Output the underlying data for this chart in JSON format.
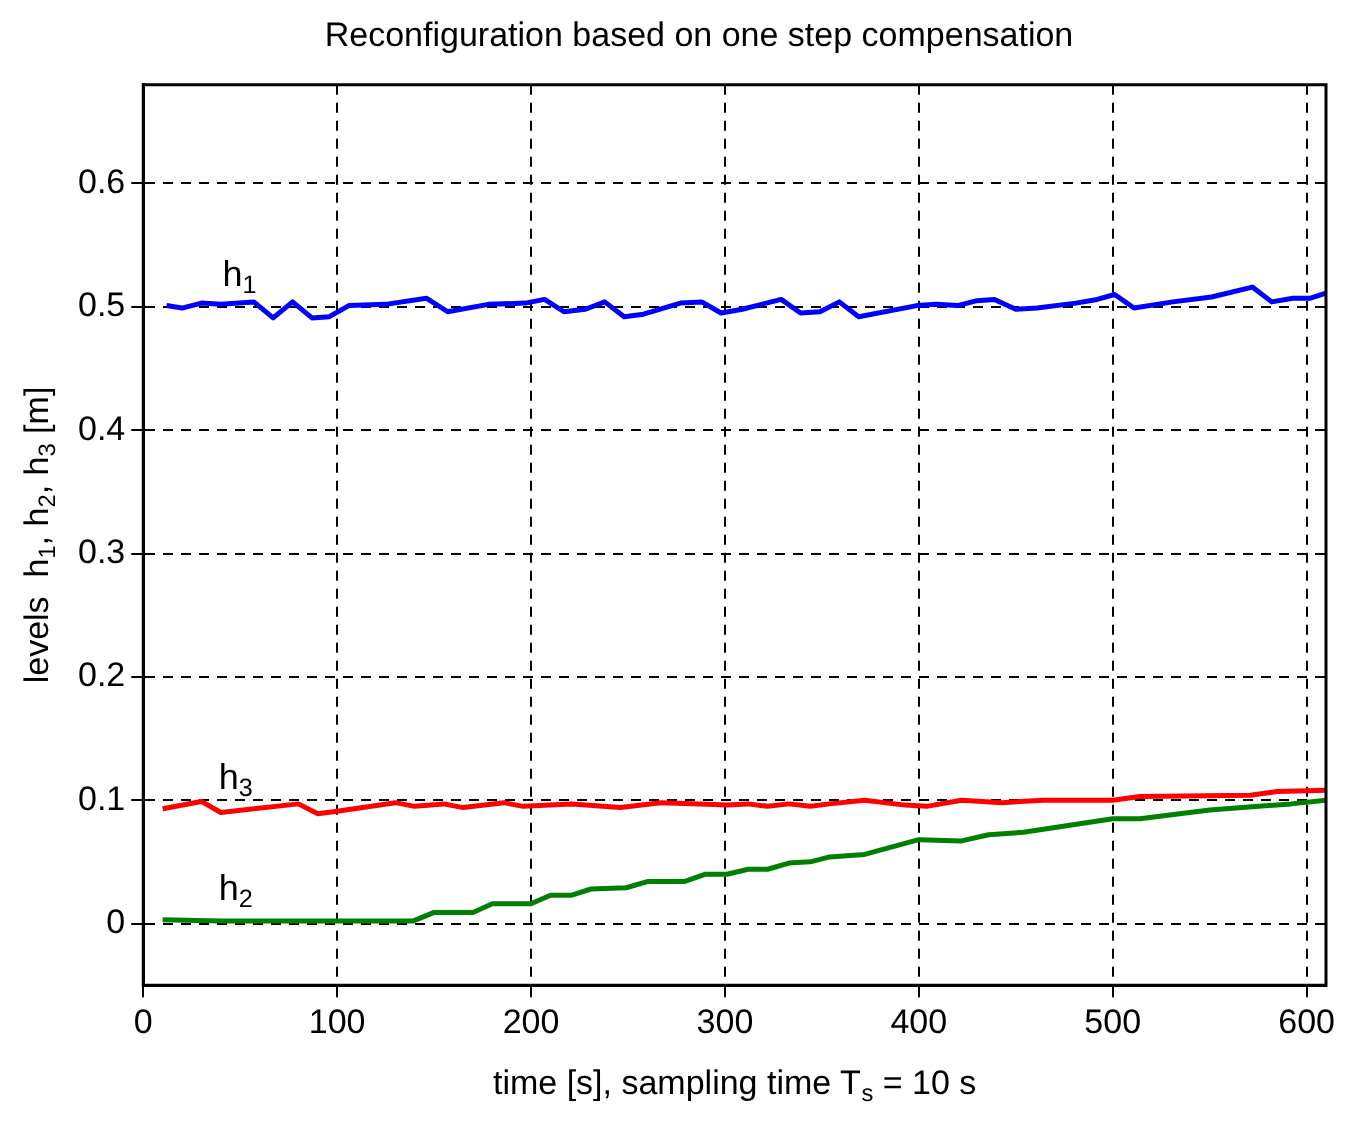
{
  "chart_data": {
    "type": "line",
    "title": "Reconfiguration based on one step compensation",
    "xlabel": "time [s], sampling time T$_{s}$ = 10 s",
    "ylabel": "levels  h$_{1}$, h$_{2}$, h$_{3}$ [m]",
    "xlim": [
      0,
      610
    ],
    "xticks": [
      0,
      100,
      200,
      300,
      400,
      500,
      600
    ],
    "ylim": [
      -0.05,
      0.68
    ],
    "yticks": [
      0,
      0.1,
      0.2,
      0.3,
      0.4,
      0.5,
      0.6
    ],
    "grid": true,
    "legend": false,
    "marker": "none",
    "line_style": "solid",
    "series": [
      {
        "name": "h$_{1}$",
        "color": "#0000ff",
        "x": [
          12,
          20,
          30,
          40,
          57,
          67,
          77,
          87,
          96,
          106,
          125,
          146,
          157,
          178,
          197,
          207,
          217,
          228,
          238,
          248,
          258,
          277,
          288,
          298,
          309,
          329,
          339,
          349,
          359,
          369,
          399,
          409,
          420,
          430,
          439,
          450,
          461,
          481,
          492,
          501,
          511,
          531,
          551,
          572,
          582,
          593,
          602,
          610
        ],
        "values": [
          0.501,
          0.499,
          0.503,
          0.502,
          0.504,
          0.491,
          0.504,
          0.491,
          0.492,
          0.501,
          0.502,
          0.507,
          0.496,
          0.502,
          0.503,
          0.506,
          0.496,
          0.498,
          0.504,
          0.492,
          0.494,
          0.503,
          0.504,
          0.495,
          0.498,
          0.506,
          0.495,
          0.496,
          0.504,
          0.492,
          0.501,
          0.502,
          0.501,
          0.505,
          0.506,
          0.498,
          0.499,
          0.503,
          0.506,
          0.51,
          0.499,
          0.504,
          0.508,
          0.516,
          0.504,
          0.507,
          0.507,
          0.511
        ]
      },
      {
        "name": "h$_{2}$",
        "color": "#008000",
        "x": [
          10,
          40,
          100,
          139,
          150,
          170,
          180,
          200,
          210,
          221,
          231,
          249,
          260,
          279,
          290,
          301,
          312,
          322,
          333,
          344,
          354,
          372,
          400,
          422,
          436,
          454,
          500,
          514,
          550,
          592,
          610
        ],
        "values": [
          0.003,
          0.002,
          0.002,
          0.002,
          0.009,
          0.009,
          0.016,
          0.016,
          0.023,
          0.023,
          0.028,
          0.029,
          0.034,
          0.034,
          0.04,
          0.04,
          0.044,
          0.044,
          0.049,
          0.05,
          0.054,
          0.056,
          0.068,
          0.067,
          0.072,
          0.074,
          0.085,
          0.085,
          0.092,
          0.097,
          0.1
        ]
      },
      {
        "name": "h$_{3}$",
        "color": "#ff0000",
        "x": [
          10,
          30,
          40,
          80,
          90,
          100,
          130,
          140,
          155,
          165,
          186,
          196,
          221,
          246,
          267,
          287,
          301,
          312,
          322,
          333,
          344,
          354,
          372,
          393,
          404,
          422,
          443,
          464,
          500,
          514,
          571,
          585,
          610
        ],
        "values": [
          0.093,
          0.099,
          0.09,
          0.097,
          0.089,
          0.091,
          0.098,
          0.095,
          0.097,
          0.094,
          0.098,
          0.095,
          0.097,
          0.094,
          0.098,
          0.097,
          0.096,
          0.097,
          0.095,
          0.097,
          0.095,
          0.097,
          0.1,
          0.096,
          0.095,
          0.1,
          0.098,
          0.1,
          0.1,
          0.103,
          0.104,
          0.107,
          0.108
        ]
      }
    ]
  }
}
